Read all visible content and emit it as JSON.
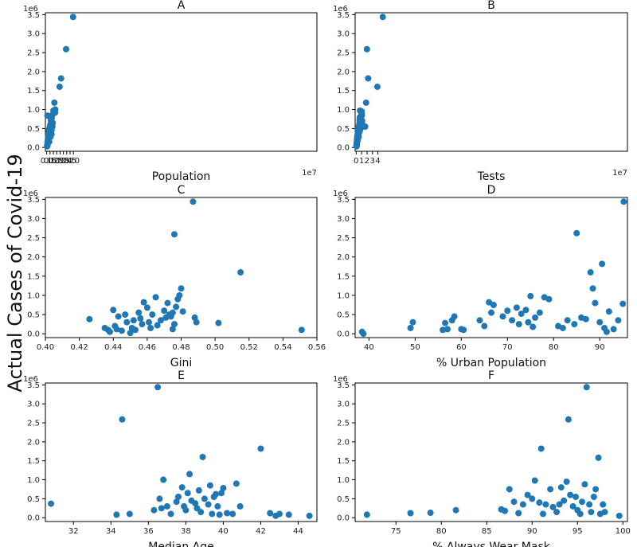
{
  "figure": {
    "ylabel": "Actual Cases of Covid-19",
    "accent": "#1f77b4"
  },
  "chart_data": [
    {
      "type": "scatter",
      "title": "A",
      "xlabel": "Population",
      "x_multiplier_label": "1e7",
      "y_multiplier_label": "1e6",
      "xlim": [
        -0.2,
        40.5
      ],
      "ylim": [
        -0.1,
        3.55
      ],
      "xticks": [
        0,
        0.5,
        1.0,
        1.5,
        2.0,
        2.5,
        3.0,
        3.5,
        4.0
      ],
      "xtick_labels": [
        "0.0",
        "0.5",
        "1.0",
        "1.5",
        "2.0",
        "2.5",
        "3.0",
        "3.5",
        "4.0"
      ],
      "yticks": [
        0,
        0.5,
        1.0,
        1.5,
        2.0,
        2.5,
        3.0,
        3.5
      ],
      "ytick_labels": [
        "0.0",
        "0.5",
        "1.0",
        "1.5",
        "2.0",
        "2.5",
        "3.0",
        "3.5"
      ],
      "x": [
        0.06,
        0.08,
        0.1,
        0.12,
        0.14,
        0.16,
        0.18,
        0.2,
        0.22,
        0.25,
        0.28,
        0.3,
        0.32,
        0.35,
        0.38,
        0.4,
        0.42,
        0.45,
        0.48,
        0.5,
        0.52,
        0.55,
        0.58,
        0.6,
        0.62,
        0.65,
        0.68,
        0.7,
        0.72,
        0.75,
        0.8,
        0.85,
        0.9,
        1.0,
        1.05,
        1.15,
        1.25,
        1.28,
        0.11,
        0.26,
        0.37,
        0.57,
        0.73,
        1.93,
        2.15,
        2.9,
        3.95
      ],
      "y": [
        0.03,
        0.06,
        0.84,
        0.12,
        0.1,
        0.2,
        0.15,
        0.18,
        0.28,
        0.32,
        0.36,
        0.4,
        0.38,
        0.45,
        0.42,
        0.5,
        0.48,
        0.52,
        0.5,
        0.55,
        0.58,
        0.54,
        0.62,
        0.6,
        0.72,
        0.75,
        0.7,
        0.8,
        0.35,
        0.78,
        0.85,
        0.55,
        0.65,
        0.97,
        0.95,
        1.18,
        0.92,
        1.0,
        0.05,
        0.22,
        0.15,
        0.28,
        0.45,
        1.6,
        1.82,
        2.59,
        3.44
      ]
    },
    {
      "type": "scatter",
      "title": "B",
      "xlabel": "Tests",
      "x_multiplier_label": "1e7",
      "y_multiplier_label": "1e6",
      "xlim": [
        -0.2,
        50
      ],
      "ylim": [
        -0.1,
        3.55
      ],
      "xticks": [
        0,
        1,
        2,
        3,
        4
      ],
      "xtick_labels": [
        "0",
        "1",
        "2",
        "3",
        "4"
      ],
      "yticks": [
        0,
        0.5,
        1.0,
        1.5,
        2.0,
        2.5,
        3.0,
        3.5
      ],
      "ytick_labels": [
        "0.0",
        "0.5",
        "1.0",
        "1.5",
        "2.0",
        "2.5",
        "3.0",
        "3.5"
      ],
      "x": [
        0.05,
        0.08,
        0.1,
        0.12,
        0.15,
        0.18,
        0.2,
        0.22,
        0.25,
        0.28,
        0.3,
        0.32,
        0.35,
        0.38,
        0.4,
        0.42,
        0.45,
        0.48,
        0.5,
        0.55,
        0.58,
        0.6,
        0.62,
        0.65,
        0.68,
        0.7,
        0.72,
        0.75,
        0.8,
        0.85,
        0.9,
        1.0,
        1.02,
        1.05,
        1.08,
        1.1,
        0.07,
        0.13,
        0.26,
        0.46,
        0.66,
        1.65,
        1.82,
        1.98,
        2.2,
        3.9,
        4.9
      ],
      "y": [
        0.05,
        0.1,
        0.12,
        0.15,
        0.2,
        0.25,
        0.3,
        0.22,
        0.48,
        0.35,
        0.38,
        0.4,
        0.42,
        0.45,
        0.5,
        0.48,
        0.52,
        0.55,
        0.38,
        0.6,
        0.58,
        0.62,
        0.7,
        0.75,
        0.8,
        0.97,
        0.6,
        0.55,
        0.5,
        0.82,
        0.78,
        0.95,
        0.9,
        0.85,
        0.7,
        0.62,
        0.03,
        0.08,
        0.18,
        0.28,
        0.44,
        0.55,
        1.18,
        2.59,
        1.82,
        1.6,
        3.44
      ]
    },
    {
      "type": "scatter",
      "title": "C",
      "xlabel": "Gini",
      "x_multiplier_label": "",
      "y_multiplier_label": "1e6",
      "xlim": [
        0.4,
        0.56
      ],
      "ylim": [
        -0.1,
        3.55
      ],
      "xticks": [
        0.4,
        0.42,
        0.44,
        0.46,
        0.48,
        0.5,
        0.52,
        0.54,
        0.56
      ],
      "xtick_labels": [
        "0.40",
        "0.42",
        "0.44",
        "0.46",
        "0.48",
        "0.50",
        "0.52",
        "0.54",
        "0.56"
      ],
      "yticks": [
        0,
        0.5,
        1.0,
        1.5,
        2.0,
        2.5,
        3.0,
        3.5
      ],
      "ytick_labels": [
        "0.0",
        "0.5",
        "1.0",
        "1.5",
        "2.0",
        "2.5",
        "3.0",
        "3.5"
      ],
      "x": [
        0.426,
        0.435,
        0.437,
        0.438,
        0.44,
        0.441,
        0.442,
        0.443,
        0.445,
        0.447,
        0.448,
        0.45,
        0.451,
        0.452,
        0.453,
        0.455,
        0.456,
        0.457,
        0.458,
        0.46,
        0.461,
        0.462,
        0.463,
        0.465,
        0.466,
        0.468,
        0.47,
        0.471,
        0.472,
        0.473,
        0.474,
        0.475,
        0.476,
        0.477,
        0.478,
        0.479,
        0.48,
        0.481,
        0.475,
        0.476,
        0.487,
        0.488,
        0.489,
        0.502,
        0.515,
        0.551
      ],
      "y": [
        0.38,
        0.15,
        0.1,
        0.05,
        0.62,
        0.2,
        0.12,
        0.45,
        0.08,
        0.5,
        0.3,
        0.02,
        0.15,
        0.35,
        0.1,
        0.55,
        0.4,
        0.25,
        0.82,
        0.68,
        0.3,
        0.15,
        0.5,
        0.95,
        0.22,
        0.35,
        0.6,
        0.42,
        0.8,
        0.5,
        0.45,
        0.55,
        0.25,
        0.7,
        0.9,
        1.0,
        1.18,
        0.58,
        0.12,
        2.59,
        3.44,
        0.42,
        0.3,
        0.28,
        1.6,
        0.1
      ]
    },
    {
      "type": "scatter",
      "title": "D",
      "xlabel": "% Urban Population",
      "x_multiplier_label": "",
      "y_multiplier_label": "1e6",
      "xlim": [
        37,
        96
      ],
      "ylim": [
        -0.1,
        3.55
      ],
      "xticks": [
        40,
        50,
        60,
        70,
        80,
        90
      ],
      "xtick_labels": [
        "40",
        "50",
        "60",
        "70",
        "80",
        "90"
      ],
      "yticks": [
        0,
        0.5,
        1.0,
        1.5,
        2.0,
        2.5,
        3.0,
        3.5
      ],
      "ytick_labels": [
        "0.0",
        "0.5",
        "1.0",
        "1.5",
        "2.0",
        "2.5",
        "3.0",
        "3.5"
      ],
      "x": [
        38.5,
        38.8,
        49,
        49.5,
        56,
        56.5,
        57,
        58,
        58.5,
        60,
        60.5,
        64,
        65,
        66,
        66.5,
        67,
        69,
        70,
        71,
        72,
        72.5,
        73,
        74,
        74.5,
        75,
        75.5,
        76,
        77,
        78,
        79,
        81,
        82,
        83,
        84.5,
        85,
        86,
        87,
        88,
        88.5,
        89,
        90,
        90.5,
        91,
        91.5,
        92,
        93,
        94,
        95,
        95.2
      ],
      "y": [
        0.05,
        0.0,
        0.15,
        0.3,
        0.1,
        0.28,
        0.12,
        0.35,
        0.45,
        0.12,
        0.1,
        0.35,
        0.2,
        0.82,
        0.55,
        0.75,
        0.45,
        0.6,
        0.35,
        0.68,
        0.25,
        0.52,
        0.62,
        0.3,
        0.98,
        0.18,
        0.42,
        0.55,
        0.95,
        0.9,
        0.2,
        0.15,
        0.35,
        0.25,
        2.62,
        0.42,
        0.38,
        1.6,
        1.18,
        0.8,
        0.3,
        1.82,
        0.15,
        0.05,
        0.58,
        0.12,
        0.35,
        0.78,
        3.44
      ]
    },
    {
      "type": "scatter",
      "title": "E",
      "xlabel": "Median Age",
      "x_multiplier_label": "",
      "y_multiplier_label": "1e6",
      "xlim": [
        30.5,
        45
      ],
      "ylim": [
        -0.1,
        3.55
      ],
      "xticks": [
        32,
        34,
        36,
        38,
        40,
        42,
        44
      ],
      "xtick_labels": [
        "32",
        "34",
        "36",
        "38",
        "40",
        "42",
        "44"
      ],
      "yticks": [
        0,
        0.5,
        1.0,
        1.5,
        2.0,
        2.5,
        3.0,
        3.5
      ],
      "ytick_labels": [
        "0.0",
        "0.5",
        "1.0",
        "1.5",
        "2.0",
        "2.5",
        "3.0",
        "3.5"
      ],
      "x": [
        30.8,
        34.3,
        34.6,
        35.0,
        36.3,
        36.5,
        36.6,
        36.7,
        36.8,
        37.0,
        37.2,
        37.5,
        37.6,
        37.8,
        37.9,
        38.0,
        38.1,
        38.2,
        38.3,
        38.5,
        38.6,
        38.7,
        38.8,
        38.9,
        39.0,
        39.2,
        39.3,
        39.4,
        39.5,
        39.6,
        39.7,
        39.8,
        39.9,
        40.0,
        40.2,
        40.5,
        40.7,
        40.9,
        42.0,
        42.5,
        42.8,
        43.0,
        43.5,
        44.6
      ],
      "y": [
        0.37,
        0.08,
        2.59,
        0.1,
        0.2,
        3.44,
        0.5,
        0.25,
        1.0,
        0.3,
        0.1,
        0.42,
        0.55,
        0.8,
        0.3,
        0.2,
        0.65,
        1.15,
        0.45,
        0.38,
        0.25,
        0.72,
        0.15,
        1.6,
        0.5,
        0.35,
        0.85,
        0.1,
        0.55,
        0.62,
        0.3,
        0.08,
        0.65,
        0.78,
        0.12,
        0.1,
        0.9,
        0.3,
        1.82,
        0.12,
        0.05,
        0.1,
        0.08,
        0.05
      ]
    },
    {
      "type": "scatter",
      "title": "F",
      "xlabel": "% Always Wear Mask",
      "x_multiplier_label": "",
      "y_multiplier_label": "1e6",
      "xlim": [
        70.5,
        100.5
      ],
      "ylim": [
        -0.1,
        3.55
      ],
      "xticks": [
        75,
        80,
        85,
        90,
        95,
        100
      ],
      "xtick_labels": [
        "75",
        "80",
        "85",
        "90",
        "95",
        "100"
      ],
      "yticks": [
        0,
        0.5,
        1.0,
        1.5,
        2.0,
        2.5,
        3.0,
        3.5
      ],
      "ytick_labels": [
        "0.0",
        "0.5",
        "1.0",
        "1.5",
        "2.0",
        "2.5",
        "3.0",
        "3.5"
      ],
      "x": [
        71.8,
        76.6,
        78.8,
        81.6,
        86.6,
        87,
        87.5,
        88,
        88.5,
        89,
        89.5,
        90,
        90.3,
        90.8,
        91,
        91.2,
        91.5,
        92,
        92.3,
        92.7,
        93,
        93.2,
        93.5,
        93.8,
        94,
        94.2,
        94.5,
        94.8,
        95,
        95.3,
        95.5,
        95.8,
        96,
        96.3,
        96.5,
        96.8,
        97,
        97.3,
        97.5,
        97.8,
        98,
        99.6
      ],
      "y": [
        0.08,
        0.12,
        0.13,
        0.2,
        0.22,
        0.18,
        0.75,
        0.42,
        0.12,
        0.35,
        0.6,
        0.5,
        0.98,
        0.4,
        1.82,
        0.1,
        0.35,
        0.75,
        0.28,
        0.15,
        0.35,
        0.8,
        0.45,
        0.95,
        2.59,
        0.6,
        0.3,
        0.55,
        0.2,
        0.1,
        0.42,
        0.88,
        3.44,
        0.35,
        0.15,
        0.55,
        0.75,
        1.58,
        0.1,
        0.35,
        0.15,
        0.05
      ]
    }
  ]
}
